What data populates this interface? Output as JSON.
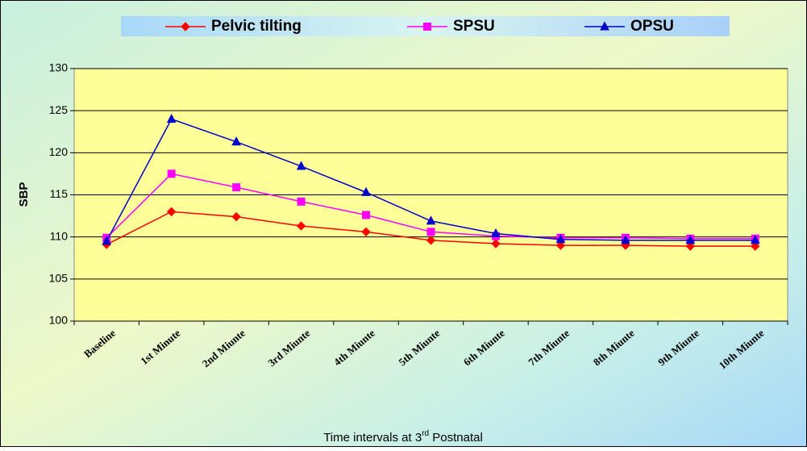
{
  "chart_data": {
    "type": "line",
    "y_label": "SBP",
    "x_label": [
      "Time intervals at 3",
      "rd",
      " Postnatal"
    ],
    "categories": [
      "Baseline",
      "1st Minute",
      "2nd Miunte",
      "3rd Miunte",
      "4th Miunte",
      "5th Miunte",
      "6th Miunte",
      "7th Miunte",
      "8th Miunte",
      "9th Miunte",
      "10th Miunte"
    ],
    "series": [
      {
        "name": "Pelvic tilting",
        "color": "#ff0000",
        "marker": "diamond",
        "values": [
          109.1,
          113,
          112.4,
          111.3,
          110.6,
          109.6,
          109.2,
          109.0,
          109.0,
          108.9,
          108.9
        ]
      },
      {
        "name": "SPSU",
        "color": "#ff00ff",
        "marker": "square",
        "values": [
          109.9,
          117.5,
          115.9,
          114.2,
          112.6,
          110.6,
          110.1,
          109.9,
          109.9,
          109.8,
          109.8
        ]
      },
      {
        "name": "OPSU",
        "color": "#0000cc",
        "marker": "triangle",
        "values": [
          109.5,
          124,
          121.3,
          118.4,
          115.3,
          111.9,
          110.4,
          109.7,
          109.6,
          109.6,
          109.6
        ]
      }
    ],
    "ylim": [
      100,
      130
    ],
    "yticks": [
      100,
      105,
      110,
      115,
      120,
      125,
      130
    ],
    "grid": true,
    "legend": "top"
  }
}
